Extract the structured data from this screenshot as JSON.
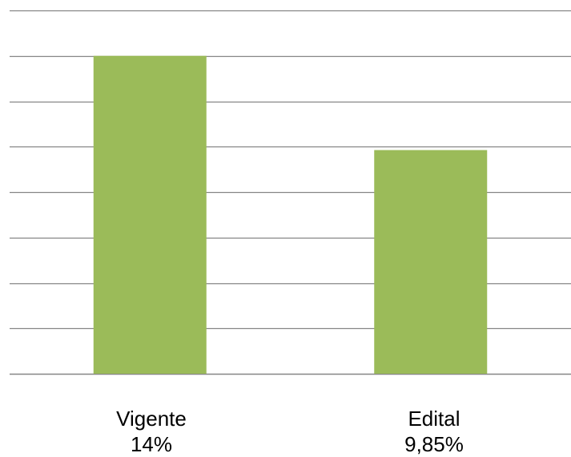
{
  "chart_data": {
    "type": "bar",
    "categories": [
      {
        "name": "Vigente",
        "value_label": "14%"
      },
      {
        "name": "Edital",
        "value_label": "9,85%"
      }
    ],
    "values": [
      14,
      9.85
    ],
    "ylim": [
      0,
      16
    ],
    "y_gridline_step": 2,
    "grid": true,
    "bar_color": "#9BBB59",
    "gridline_color": "#868686"
  }
}
